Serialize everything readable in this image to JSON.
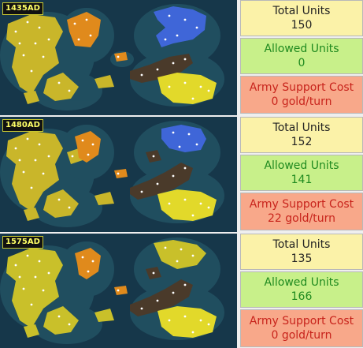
{
  "snapshots": [
    {
      "year": "1435AD",
      "total_units_label": "Total Units",
      "total_units": "150",
      "allowed_units_label": "Allowed Units",
      "allowed_units": "0",
      "support_cost_label": "Army Support Cost",
      "support_cost": "0 gold/turn"
    },
    {
      "year": "1480AD",
      "total_units_label": "Total Units",
      "total_units": "152",
      "allowed_units_label": "Allowed Units",
      "allowed_units": "141",
      "support_cost_label": "Army Support Cost",
      "support_cost": "22 gold/turn"
    },
    {
      "year": "1575AD",
      "total_units_label": "Total Units",
      "total_units": "135",
      "allowed_units_label": "Allowed Units",
      "allowed_units": "166",
      "support_cost_label": "Army Support Cost",
      "support_cost": "0 gold/turn"
    }
  ],
  "colors": {
    "ocean": "#16374a",
    "yellow_civ": "#d9c52a",
    "orange_civ": "#e08a1c",
    "blue_civ": "#3f66d8",
    "dark_civ": "#4a3a2a",
    "bright_yellow_civ": "#e8e02a"
  }
}
